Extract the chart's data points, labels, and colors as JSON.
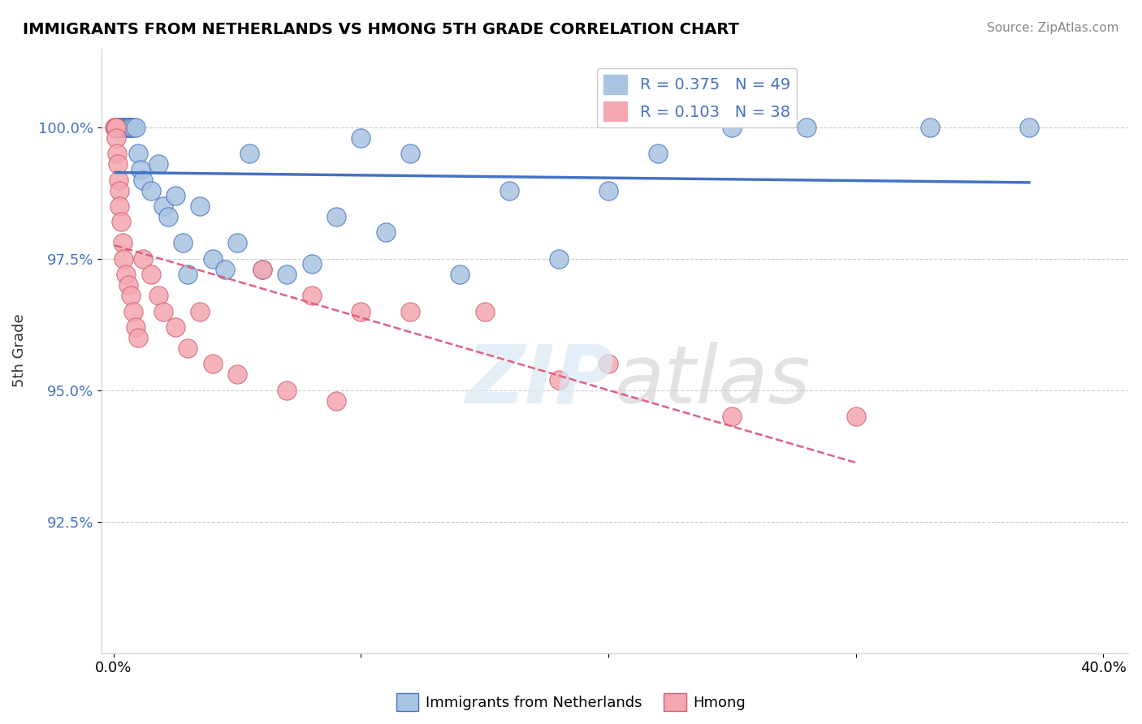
{
  "title": "IMMIGRANTS FROM NETHERLANDS VS HMONG 5TH GRADE CORRELATION CHART",
  "source": "Source: ZipAtlas.com",
  "xlabel": "",
  "ylabel": "5th Grade",
  "xlim": [
    0.0,
    40.0
  ],
  "ylim": [
    90.0,
    101.5
  ],
  "yticks": [
    92.5,
    95.0,
    97.5,
    100.0
  ],
  "ytick_labels": [
    "92.5%",
    "95.0%",
    "97.5%",
    "100.0%"
  ],
  "xticks": [
    0.0,
    10.0,
    20.0,
    30.0,
    40.0
  ],
  "xtick_labels": [
    "0.0%",
    "",
    "",
    "",
    "40.0%"
  ],
  "blue_R": 0.375,
  "blue_N": 49,
  "pink_R": 0.103,
  "pink_N": 38,
  "blue_color": "#a8c4e0",
  "pink_color": "#f4a7b0",
  "blue_line_color": "#4472c4",
  "pink_line_color": "#e06080",
  "legend_blue_label": "Immigrants from Netherlands",
  "legend_pink_label": "Hmong",
  "watermark": "ZIPatlas",
  "blue_x": [
    0.08,
    0.12,
    0.15,
    0.18,
    0.2,
    0.22,
    0.25,
    0.28,
    0.3,
    0.35,
    0.4,
    0.5,
    0.55,
    0.6,
    0.65,
    0.7,
    0.8,
    0.9,
    1.0,
    1.1,
    1.2,
    1.5,
    1.8,
    2.0,
    2.2,
    2.5,
    2.8,
    3.0,
    3.5,
    4.0,
    4.5,
    5.0,
    5.5,
    6.0,
    7.0,
    8.0,
    9.0,
    10.0,
    11.0,
    12.0,
    14.0,
    16.0,
    18.0,
    20.0,
    22.0,
    25.0,
    28.0,
    33.0,
    37.0
  ],
  "blue_y": [
    100.0,
    100.0,
    100.0,
    100.0,
    100.0,
    100.0,
    100.0,
    100.0,
    100.0,
    100.0,
    100.0,
    100.0,
    100.0,
    100.0,
    100.0,
    100.0,
    100.0,
    100.0,
    99.5,
    99.2,
    99.0,
    98.8,
    99.3,
    98.5,
    98.3,
    98.7,
    97.8,
    97.2,
    98.5,
    97.5,
    97.3,
    97.8,
    99.5,
    97.3,
    97.2,
    97.4,
    98.3,
    99.8,
    98.0,
    99.5,
    97.2,
    98.8,
    97.5,
    98.8,
    99.5,
    100.0,
    100.0,
    100.0,
    100.0
  ],
  "pink_x": [
    0.05,
    0.08,
    0.1,
    0.12,
    0.15,
    0.18,
    0.2,
    0.22,
    0.25,
    0.3,
    0.35,
    0.4,
    0.5,
    0.6,
    0.7,
    0.8,
    0.9,
    1.0,
    1.2,
    1.5,
    1.8,
    2.0,
    2.5,
    3.0,
    3.5,
    4.0,
    5.0,
    6.0,
    7.0,
    8.0,
    9.0,
    10.0,
    12.0,
    15.0,
    18.0,
    20.0,
    25.0,
    30.0
  ],
  "pink_y": [
    100.0,
    100.0,
    100.0,
    99.8,
    99.5,
    99.3,
    99.0,
    98.8,
    98.5,
    98.2,
    97.8,
    97.5,
    97.2,
    97.0,
    96.8,
    96.5,
    96.2,
    96.0,
    97.5,
    97.2,
    96.8,
    96.5,
    96.2,
    95.8,
    96.5,
    95.5,
    95.3,
    97.3,
    95.0,
    96.8,
    94.8,
    96.5,
    96.5,
    96.5,
    95.2,
    95.5,
    94.5,
    94.5
  ]
}
